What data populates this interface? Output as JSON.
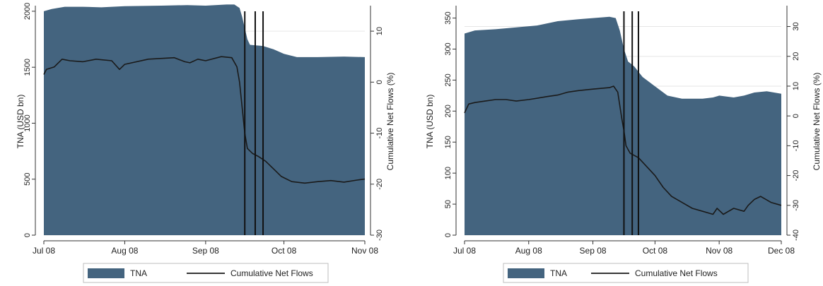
{
  "colors": {
    "tna_fill": "#44647f",
    "flow_line": "#1a1a1a",
    "axis": "#333333",
    "grid": "#e6e6e6",
    "event_line": "#111111"
  },
  "chart_data": [
    {
      "type": "area",
      "left_axis_label": "TNA (USD bn)",
      "right_axis_label": "Cumulative Net Flows (%)",
      "x_ticks": [
        "Jul 08",
        "Aug 08",
        "Sep 08",
        "Oct 08",
        "Nov 08"
      ],
      "x_tick_days": [
        0,
        31,
        62,
        92,
        123
      ],
      "x_range_days": [
        0,
        123
      ],
      "ylim_left": [
        0,
        2050
      ],
      "yticks_left": [
        0,
        500,
        1000,
        1500,
        2000
      ],
      "ylim_right": [
        -30,
        15
      ],
      "yticks_right": [
        -30,
        -20,
        -10,
        0,
        10
      ],
      "event_lines_days": [
        77,
        81,
        84
      ],
      "series": [
        {
          "name": "TNA",
          "axis": "left",
          "points": [
            [
              0,
              2000
            ],
            [
              3,
              2020
            ],
            [
              8,
              2040
            ],
            [
              15,
              2040
            ],
            [
              22,
              2035
            ],
            [
              31,
              2045
            ],
            [
              45,
              2050
            ],
            [
              55,
              2055
            ],
            [
              62,
              2050
            ],
            [
              70,
              2060
            ],
            [
              73,
              2060
            ],
            [
              75,
              2030
            ],
            [
              76,
              1950
            ],
            [
              77,
              1850
            ],
            [
              78,
              1750
            ],
            [
              79,
              1700
            ],
            [
              84,
              1690
            ],
            [
              88,
              1660
            ],
            [
              92,
              1620
            ],
            [
              97,
              1590
            ],
            [
              105,
              1590
            ],
            [
              115,
              1595
            ],
            [
              123,
              1590
            ]
          ]
        },
        {
          "name": "Cumulative Net Flows",
          "axis": "right",
          "points": [
            [
              0,
              1.5
            ],
            [
              1,
              2.5
            ],
            [
              4,
              3
            ],
            [
              7,
              4.5
            ],
            [
              10,
              4.2
            ],
            [
              15,
              4
            ],
            [
              20,
              4.5
            ],
            [
              26,
              4.2
            ],
            [
              29,
              2.5
            ],
            [
              31,
              3.5
            ],
            [
              40,
              4.5
            ],
            [
              50,
              4.8
            ],
            [
              54,
              4
            ],
            [
              56,
              3.8
            ],
            [
              59,
              4.5
            ],
            [
              62,
              4.2
            ],
            [
              68,
              5
            ],
            [
              72,
              4.8
            ],
            [
              74,
              3
            ],
            [
              75,
              0
            ],
            [
              76,
              -5
            ],
            [
              77,
              -10
            ],
            [
              78,
              -13
            ],
            [
              80,
              -14
            ],
            [
              82,
              -14.5
            ],
            [
              85,
              -15.5
            ],
            [
              88,
              -17
            ],
            [
              91,
              -18.5
            ],
            [
              95,
              -19.5
            ],
            [
              100,
              -19.8
            ],
            [
              105,
              -19.5
            ],
            [
              110,
              -19.3
            ],
            [
              115,
              -19.6
            ],
            [
              120,
              -19.2
            ],
            [
              123,
              -19.0
            ]
          ]
        }
      ],
      "legend": {
        "placement": "bottom",
        "items": [
          "TNA",
          "Cumulative Net Flows"
        ]
      }
    },
    {
      "type": "area",
      "left_axis_label": "TNA (USD bn)",
      "right_axis_label": "Cumulative Net Flows (%)",
      "x_ticks": [
        "Jul 08",
        "Aug 08",
        "Sep 08",
        "Oct 08",
        "Nov 08",
        "Dec 08"
      ],
      "x_tick_days": [
        0,
        31,
        62,
        92,
        123,
        153
      ],
      "x_range_days": [
        0,
        153
      ],
      "ylim_left": [
        0,
        370
      ],
      "yticks_left": [
        0,
        50,
        100,
        150,
        200,
        250,
        300,
        350
      ],
      "ylim_right": [
        -40,
        37
      ],
      "yticks_right": [
        -40,
        -30,
        -20,
        -10,
        0,
        10,
        20,
        30
      ],
      "event_lines_days": [
        77,
        81,
        84
      ],
      "series": [
        {
          "name": "TNA",
          "axis": "left",
          "points": [
            [
              0,
              325
            ],
            [
              5,
              330
            ],
            [
              15,
              332
            ],
            [
              25,
              335
            ],
            [
              35,
              338
            ],
            [
              45,
              345
            ],
            [
              55,
              348
            ],
            [
              62,
              350
            ],
            [
              70,
              352
            ],
            [
              73,
              350
            ],
            [
              75,
              330
            ],
            [
              77,
              300
            ],
            [
              79,
              280
            ],
            [
              82,
              272
            ],
            [
              86,
              255
            ],
            [
              92,
              240
            ],
            [
              98,
              225
            ],
            [
              105,
              220
            ],
            [
              115,
              220
            ],
            [
              120,
              222
            ],
            [
              123,
              225
            ],
            [
              130,
              222
            ],
            [
              135,
              225
            ],
            [
              140,
              230
            ],
            [
              146,
              232
            ],
            [
              153,
              228
            ]
          ]
        },
        {
          "name": "Cumulative Net Flows",
          "axis": "right",
          "points": [
            [
              0,
              1
            ],
            [
              2,
              4
            ],
            [
              5,
              4.5
            ],
            [
              10,
              5
            ],
            [
              15,
              5.5
            ],
            [
              20,
              5.5
            ],
            [
              25,
              5
            ],
            [
              31,
              5.5
            ],
            [
              40,
              6.5
            ],
            [
              45,
              7
            ],
            [
              50,
              8
            ],
            [
              55,
              8.5
            ],
            [
              62,
              9
            ],
            [
              70,
              9.5
            ],
            [
              72,
              10
            ],
            [
              74,
              8
            ],
            [
              76,
              -1
            ],
            [
              77,
              -5
            ],
            [
              78,
              -10
            ],
            [
              80,
              -12.5
            ],
            [
              84,
              -14
            ],
            [
              88,
              -17
            ],
            [
              92,
              -20
            ],
            [
              96,
              -24
            ],
            [
              100,
              -27
            ],
            [
              105,
              -29
            ],
            [
              110,
              -31
            ],
            [
              115,
              -32
            ],
            [
              120,
              -33
            ],
            [
              122,
              -31
            ],
            [
              125,
              -33
            ],
            [
              130,
              -31
            ],
            [
              135,
              -32
            ],
            [
              137,
              -30
            ],
            [
              140,
              -28
            ],
            [
              143,
              -27
            ],
            [
              148,
              -29
            ],
            [
              153,
              -30
            ]
          ]
        }
      ],
      "legend": {
        "placement": "bottom",
        "items": [
          "TNA",
          "Cumulative Net Flows"
        ]
      }
    }
  ]
}
